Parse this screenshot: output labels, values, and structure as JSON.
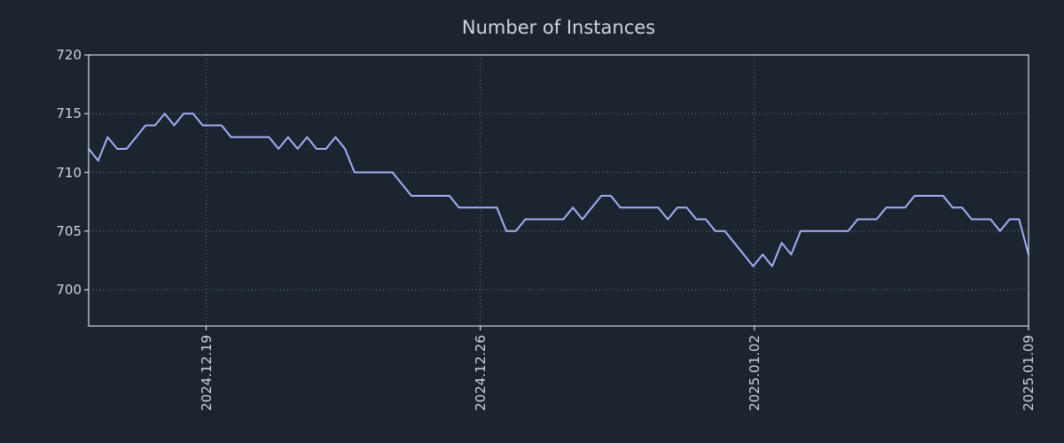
{
  "chart_data": {
    "type": "line",
    "title": "Number of Instances",
    "xlabel": "",
    "ylabel": "",
    "legend": null,
    "grid": "dotted",
    "y_ticks": [
      "720",
      "715",
      "710",
      "705",
      "700"
    ],
    "ylim": [
      697,
      720
    ],
    "x_tick_labels": [
      "2024.12.19",
      "2024.12.26",
      "2025.01.02",
      "2025.01.09"
    ],
    "x_tick_days": [
      3,
      10,
      17,
      24
    ],
    "x_start_day": 0,
    "x_end_day": 24,
    "values": [
      712,
      711,
      713,
      712,
      712,
      713,
      714,
      714,
      715,
      714,
      715,
      715,
      714,
      714,
      714,
      713,
      713,
      713,
      713,
      713,
      712,
      713,
      712,
      713,
      712,
      712,
      713,
      712,
      710,
      710,
      710,
      710,
      710,
      709,
      708,
      708,
      708,
      708,
      708,
      707,
      707,
      707,
      707,
      707,
      705,
      705,
      706,
      706,
      706,
      706,
      706,
      707,
      706,
      707,
      708,
      708,
      707,
      707,
      707,
      707,
      707,
      706,
      707,
      707,
      706,
      706,
      705,
      705,
      704,
      703,
      702,
      703,
      702,
      704,
      703,
      705,
      705,
      705,
      705,
      705,
      705,
      706,
      706,
      706,
      707,
      707,
      707,
      708,
      708,
      708,
      708,
      707,
      707,
      706,
      706,
      706,
      705,
      706,
      706,
      703
    ],
    "colors": {
      "background": "#1c2430",
      "text": "#ccd4de",
      "line": "#a9acf5",
      "grid": "#9aa6b4",
      "frame": "#c6ced8"
    }
  }
}
